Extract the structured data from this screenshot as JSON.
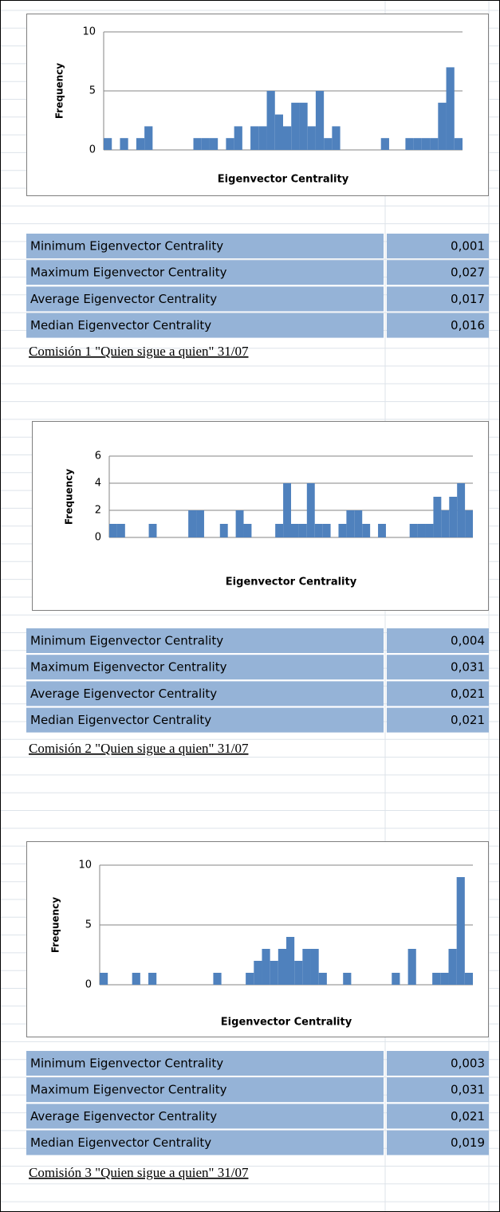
{
  "chart_data": [
    {
      "type": "histogram",
      "y_label": "Frequency",
      "x_label": "Eigenvector Centrality",
      "ylim": [
        0,
        10
      ],
      "yticks": [
        0,
        5,
        10
      ],
      "color": "#4f81bd",
      "values": [
        1,
        0,
        1,
        0,
        1,
        2,
        0,
        0,
        0,
        0,
        0,
        1,
        1,
        1,
        0,
        1,
        2,
        0,
        2,
        2,
        5,
        3,
        2,
        4,
        4,
        2,
        5,
        1,
        2,
        0,
        0,
        0,
        0,
        0,
        1,
        0,
        0,
        1,
        1,
        1,
        1,
        4,
        7,
        1
      ]
    },
    {
      "type": "histogram",
      "y_label": "Frequency",
      "x_label": "Eigenvector Centrality",
      "ylim": [
        0,
        6
      ],
      "yticks": [
        0,
        2,
        4,
        6
      ],
      "color": "#4f81bd",
      "values": [
        1,
        1,
        0,
        0,
        0,
        1,
        0,
        0,
        0,
        0,
        2,
        2,
        0,
        0,
        1,
        0,
        2,
        1,
        0,
        0,
        0,
        1,
        4,
        1,
        1,
        4,
        1,
        1,
        0,
        1,
        2,
        2,
        1,
        0,
        1,
        0,
        0,
        0,
        1,
        1,
        1,
        3,
        2,
        3,
        4,
        2
      ]
    },
    {
      "type": "histogram",
      "y_label": "Frequency",
      "x_label": "Eigenvector Centrality",
      "ylim": [
        0,
        10
      ],
      "yticks": [
        0,
        5,
        10
      ],
      "color": "#4f81bd",
      "values": [
        1,
        0,
        0,
        0,
        1,
        0,
        1,
        0,
        0,
        0,
        0,
        0,
        0,
        0,
        1,
        0,
        0,
        0,
        1,
        2,
        3,
        2,
        3,
        4,
        2,
        3,
        3,
        1,
        0,
        0,
        1,
        0,
        0,
        0,
        0,
        0,
        1,
        0,
        3,
        0,
        0,
        1,
        1,
        3,
        9,
        1
      ]
    }
  ],
  "tables": [
    {
      "rows": [
        [
          "Minimum Eigenvector Centrality",
          "0,001"
        ],
        [
          "Maximum Eigenvector Centrality",
          "0,027"
        ],
        [
          "Average Eigenvector Centrality",
          "0,017"
        ],
        [
          "Median Eigenvector Centrality",
          "0,016"
        ]
      ]
    },
    {
      "rows": [
        [
          "Minimum Eigenvector Centrality",
          "0,004"
        ],
        [
          "Maximum Eigenvector Centrality",
          "0,031"
        ],
        [
          "Average Eigenvector Centrality",
          "0,021"
        ],
        [
          "Median Eigenvector Centrality",
          "0,021"
        ]
      ]
    },
    {
      "rows": [
        [
          "Minimum Eigenvector Centrality",
          "0,003"
        ],
        [
          "Maximum Eigenvector Centrality",
          "0,031"
        ],
        [
          "Average Eigenvector Centrality",
          "0,021"
        ],
        [
          "Median Eigenvector Centrality",
          "0,019"
        ]
      ]
    }
  ],
  "captions": [
    "Comisión 1 \"Quien sigue a quien\" 31/07",
    "Comisión 2 \"Quien sigue a quien\" 31/07",
    "Comisión 3 \"Quien sigue a quien\" 31/07"
  ]
}
